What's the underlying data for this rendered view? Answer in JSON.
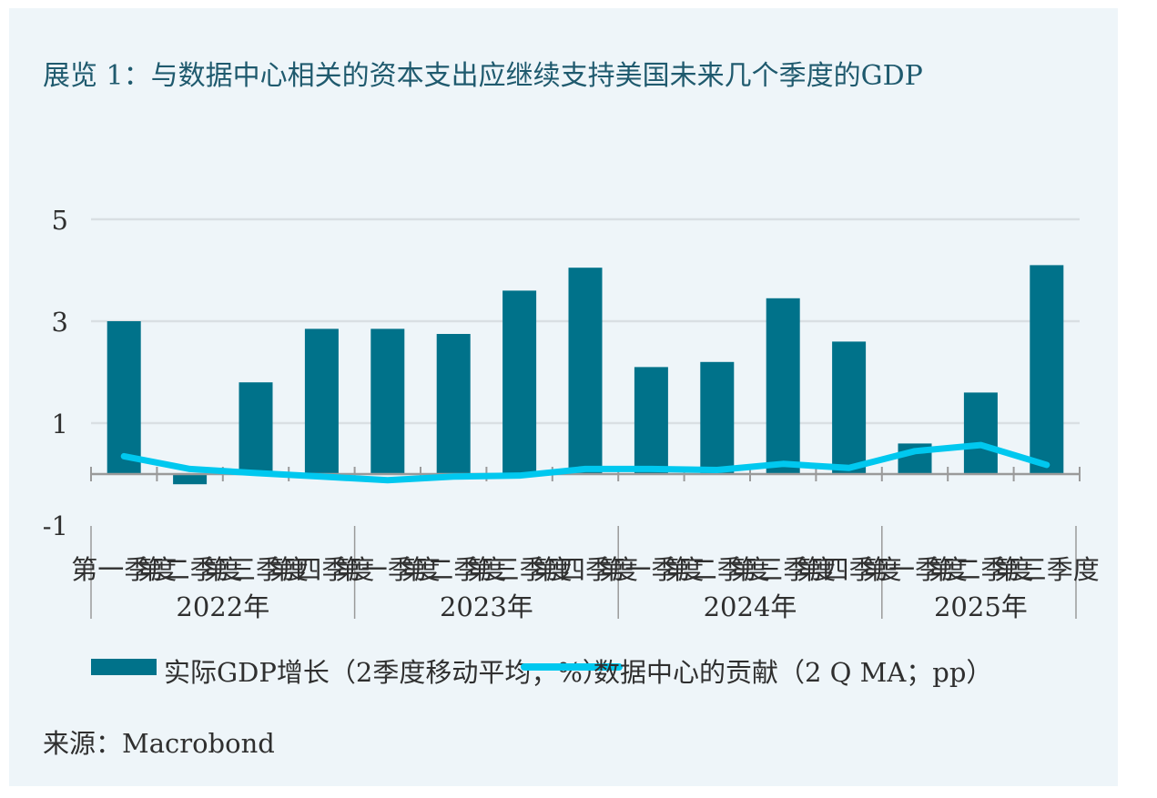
{
  "title": "展览 1：与数据中心相关的资本支出应继续支持美国未来几个季度的GDP",
  "source": "来源：Macrobond",
  "colors": {
    "bar": "#00728a",
    "line": "#00c8ef",
    "grid": "#d9dfe3",
    "panel": "#eef5f9",
    "axis": "#9a9a9a"
  },
  "chart_data": {
    "type": "bar",
    "y_ticks": [
      "5",
      "3",
      "1",
      "-1"
    ],
    "ylim": [
      -1,
      5
    ],
    "grid": true,
    "legend_position": "bottom",
    "categories": [
      "第一季度",
      "第二季度",
      "第三季度",
      "第四季度",
      "第一季度",
      "第二季度",
      "第三季度",
      "第四季度",
      "第一季度",
      "第二季度",
      "第三季度",
      "第四季度",
      "第一季度",
      "第二季度",
      "第三季度"
    ],
    "years": [
      {
        "label": "2022年",
        "quarters": 4
      },
      {
        "label": "2023年",
        "quarters": 4
      },
      {
        "label": "2024年",
        "quarters": 4
      },
      {
        "label": "2025年",
        "quarters": 3
      }
    ],
    "series": [
      {
        "name": "实际GDP增长（2季度移动平均；%）",
        "type": "bar",
        "values": [
          3.0,
          -0.2,
          1.8,
          2.85,
          2.85,
          2.75,
          3.6,
          4.05,
          2.1,
          2.2,
          3.45,
          2.6,
          0.6,
          1.6,
          4.1
        ]
      },
      {
        "name": "数据中心的贡献（2 Q MA；pp）",
        "type": "line",
        "values": [
          0.35,
          0.1,
          0.02,
          -0.05,
          -0.12,
          -0.05,
          -0.03,
          0.1,
          0.1,
          0.08,
          0.2,
          0.12,
          0.45,
          0.57,
          0.18
        ]
      }
    ]
  }
}
